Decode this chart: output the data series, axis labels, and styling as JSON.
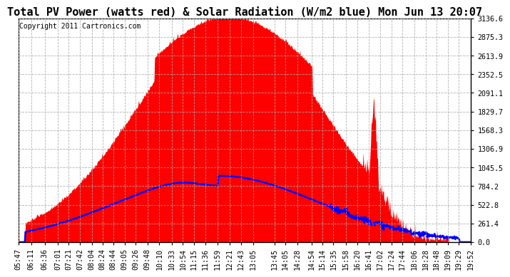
{
  "title": "Total PV Power (watts red) & Solar Radiation (W/m2 blue) Mon Jun 13 20:07",
  "copyright": "Copyright 2011 Cartronics.com",
  "ymax": 3136.6,
  "yticks": [
    0.0,
    261.4,
    522.8,
    784.2,
    1045.5,
    1306.9,
    1568.3,
    1829.7,
    2091.1,
    2352.5,
    2613.9,
    2875.3,
    3136.6
  ],
  "xtick_labels": [
    "05:47",
    "06:11",
    "06:36",
    "07:01",
    "07:21",
    "07:42",
    "08:04",
    "08:24",
    "08:44",
    "09:05",
    "09:26",
    "09:48",
    "10:10",
    "10:33",
    "10:54",
    "11:15",
    "11:36",
    "11:59",
    "12:21",
    "12:43",
    "13:05",
    "13:45",
    "14:05",
    "14:28",
    "14:54",
    "15:14",
    "15:35",
    "15:58",
    "16:20",
    "16:41",
    "17:02",
    "17:24",
    "17:44",
    "18:06",
    "18:28",
    "18:48",
    "19:09",
    "19:29",
    "19:52"
  ],
  "fill_color": "#FF0000",
  "line_color": "#0000FF",
  "background_color": "#FFFFFF",
  "title_fontsize": 11,
  "tick_fontsize": 7.2,
  "copyright_fontsize": 7
}
